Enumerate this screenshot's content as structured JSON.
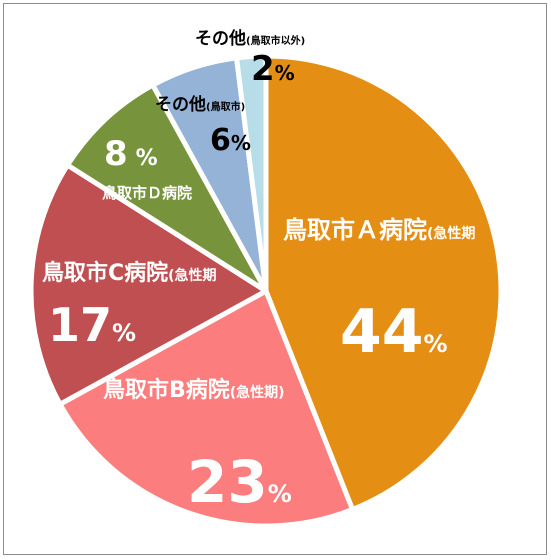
{
  "chart_data": {
    "type": "pie",
    "title": "",
    "legend": "none",
    "start_angle_deg": 0,
    "direction": "clockwise",
    "slices": [
      {
        "label": "鳥取市Ａ病院",
        "note": "(急性期",
        "value": 44,
        "value_label": "44",
        "unit": "%",
        "color": "#e48e13"
      },
      {
        "label": "鳥取市B病院",
        "note": "(急性期)",
        "value": 23,
        "value_label": "23",
        "unit": "%",
        "color": "#fb7d7e"
      },
      {
        "label": "鳥取市C病院",
        "note": "(急性期",
        "value": 17,
        "value_label": "17",
        "unit": "%",
        "color": "#c04f51"
      },
      {
        "label": "鳥取市Ｄ病院",
        "note": "",
        "value": 8,
        "value_label": "8",
        "unit": "%",
        "color": "#77933c"
      },
      {
        "label": "その他",
        "note": "(鳥取市)",
        "value": 6,
        "value_label": "6",
        "unit": "%",
        "color": "#95b3d7"
      },
      {
        "label": "その他",
        "note": "(鳥取市以外)",
        "value": 2,
        "value_label": "2",
        "unit": "%",
        "color": "#b6dde8"
      }
    ]
  }
}
